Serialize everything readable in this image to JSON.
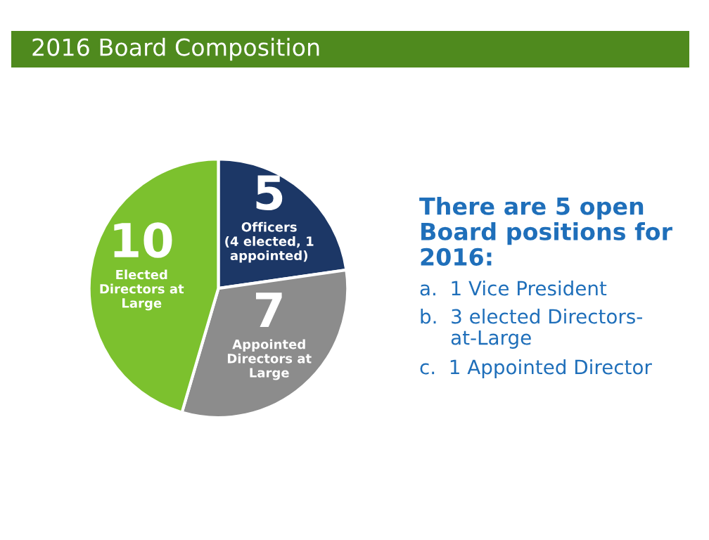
{
  "chart_data": {
    "type": "pie",
    "title": "2016 Board Composition",
    "categories": [
      "Officers\n(4 elected, 1\nappointed)",
      "Appointed\nDirectors at\nLarge",
      "Elected\nDirectors at\nLarge"
    ],
    "values": [
      5,
      7,
      10
    ],
    "colors": [
      "#1c3766",
      "#8c8c8c",
      "#7cc12e"
    ],
    "data_labels": true,
    "annotations": [
      "There are 5 open\nBoard positions for\n2016:",
      "a.  1 Vice President",
      "b.  3 elected Directors-\n     at-Large",
      "c.  1 Appointed Director"
    ]
  }
}
